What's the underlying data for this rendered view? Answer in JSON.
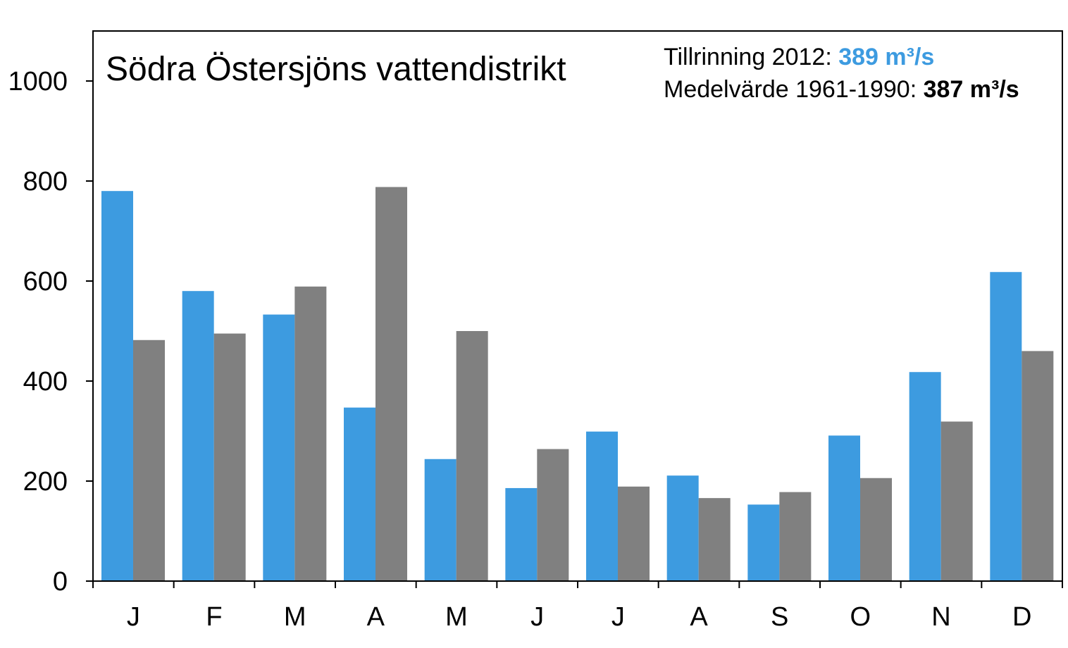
{
  "chart_data": {
    "type": "bar",
    "title": "Södra Östersjöns vattendistrikt",
    "categories": [
      "J",
      "F",
      "M",
      "A",
      "M",
      "J",
      "J",
      "A",
      "S",
      "O",
      "N",
      "D"
    ],
    "series": [
      {
        "values": [
          780,
          580,
          533,
          347,
          244,
          186,
          299,
          211,
          153,
          291,
          418,
          618
        ],
        "color": "#3d9be0"
      },
      {
        "values": [
          482,
          495,
          589,
          788,
          500,
          264,
          189,
          166,
          178,
          206,
          319,
          460
        ],
        "color": "#808080"
      }
    ],
    "ylim": [
      0,
      1000
    ],
    "yticks": [
      "0",
      "200",
      "400",
      "600",
      "800",
      "1000"
    ],
    "grid": false,
    "info": {
      "line1_label": "Tillrinning 2012: ",
      "line1_value": "389 m³/s",
      "line1_value_color": "#3d9be0",
      "line2_label": "Medelvärde 1961-1990: ",
      "line2_value": "387 m³/s"
    }
  }
}
